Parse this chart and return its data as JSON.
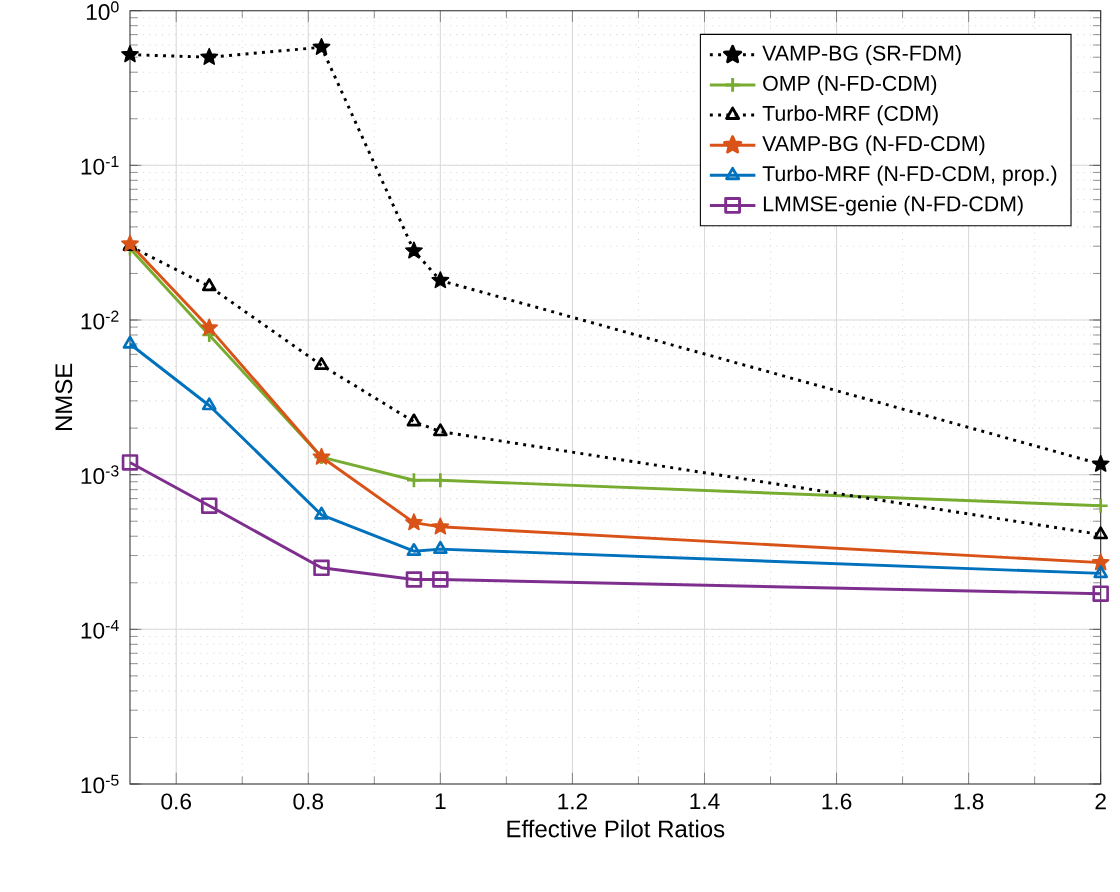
{
  "chart_data": {
    "type": "line",
    "xlabel": "Effective Pilot Ratios",
    "ylabel": "NMSE",
    "log": "y",
    "x": [
      0.53,
      0.65,
      0.82,
      0.96,
      1.0,
      2
    ],
    "xlim": [
      0.53,
      2
    ],
    "xticks": [
      0.6,
      0.8,
      1,
      1.2,
      1.4,
      1.6,
      1.8,
      2
    ],
    "ylim": [
      1e-05,
      1
    ],
    "yticks": [
      {
        "value": 1e-05,
        "label": "10$^{-5}$"
      },
      {
        "value": 0.0001,
        "label": "10$^{-4}$"
      },
      {
        "value": 0.001,
        "label": "10$^{-3}$"
      },
      {
        "value": 0.01,
        "label": "10$^{-2}$"
      },
      {
        "value": 0.1,
        "label": "10$^{-1}$"
      },
      {
        "value": 1,
        "label": "10$^{0}$"
      }
    ],
    "grid": true,
    "legend": "top right",
    "series": [
      {
        "name": "VAMP-BG (SR-FDM)",
        "color": "#000000",
        "marker": "star",
        "line_style": "dotted",
        "values": [
          0.52,
          0.5,
          0.58,
          0.028,
          0.018,
          0.00117
        ]
      },
      {
        "name": "OMP (N-FD-CDM)",
        "color": "#77ac30",
        "marker": "cross",
        "line_style": "solid",
        "values": [
          0.029,
          0.008,
          0.0013,
          0.00092,
          0.00092,
          0.00063
        ]
      },
      {
        "name": "Turbo-MRF (CDM)",
        "color": "#000000",
        "marker": "triangle",
        "line_style": "dotted",
        "values": [
          0.03,
          0.0165,
          0.0051,
          0.0022,
          0.0019,
          0.00041
        ]
      },
      {
        "name": "VAMP-BG (N-FD-CDM)",
        "color": "#d95319",
        "marker": "star",
        "line_style": "solid",
        "values": [
          0.031,
          0.0089,
          0.0013,
          0.00049,
          0.00046,
          0.00027
        ]
      },
      {
        "name": "Turbo-MRF (N-FD-CDM, prop.)",
        "color": "#0072bd",
        "marker": "triangle",
        "line_style": "solid",
        "values": [
          0.007,
          0.0028,
          0.00055,
          0.00032,
          0.00033,
          0.00023
        ]
      },
      {
        "name": "LMMSE-genie (N-FD-CDM)",
        "color": "#7e2f8e",
        "marker": "square",
        "line_style": "solid",
        "values": [
          0.0012,
          0.00063,
          0.00025,
          0.00021,
          0.00021,
          0.00017
        ]
      }
    ]
  }
}
